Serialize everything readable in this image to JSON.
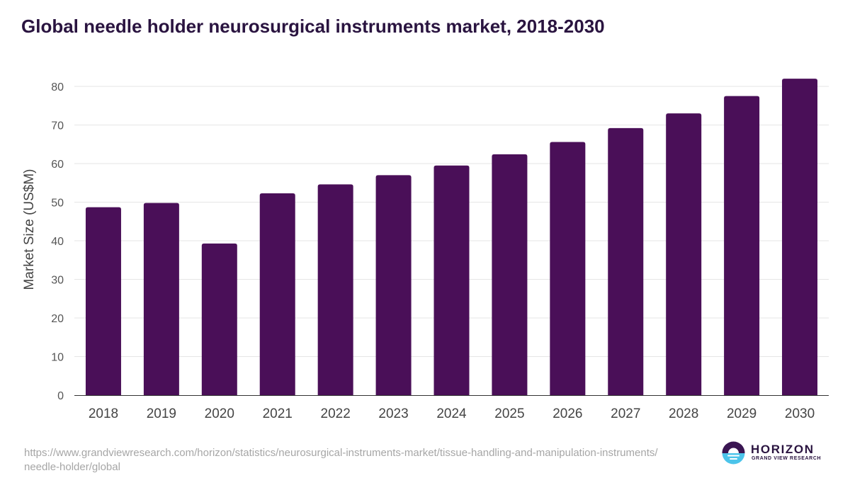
{
  "chart_data": {
    "type": "bar",
    "title": "Global needle holder neurosurgical instruments market, 2018-2030",
    "xlabel": "",
    "ylabel": "Market Size (US$M)",
    "categories": [
      "2018",
      "2019",
      "2020",
      "2021",
      "2022",
      "2023",
      "2024",
      "2025",
      "2026",
      "2027",
      "2028",
      "2029",
      "2030"
    ],
    "values": [
      48.7,
      49.8,
      39.3,
      52.3,
      54.6,
      57.0,
      59.5,
      62.4,
      65.6,
      69.2,
      73.0,
      77.5,
      82.0
    ],
    "ylim": [
      0,
      80
    ],
    "yticks": [
      0,
      10,
      20,
      30,
      40,
      50,
      60,
      70,
      80
    ],
    "grid": true,
    "legend": "none",
    "bar_color": "#4a0f58"
  },
  "source": {
    "url": "https://www.grandviewresearch.com/horizon/statistics/neurosurgical-instruments-market/tissue-handling-and-manipulation-instruments/needle-holder/global"
  },
  "logo": {
    "name": "HORIZON",
    "subtitle": "GRAND VIEW RESEARCH",
    "icon": "horizon-logo-icon"
  }
}
